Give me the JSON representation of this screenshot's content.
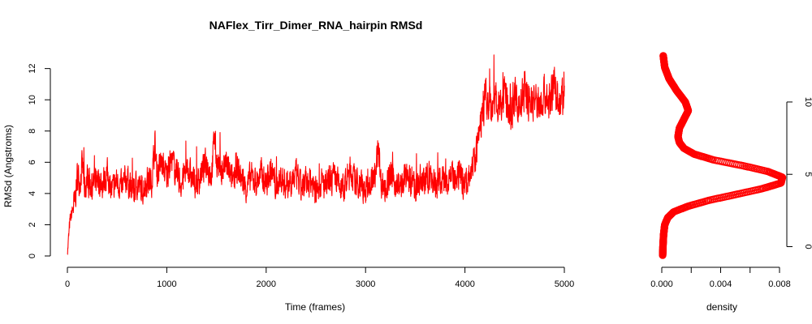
{
  "chart_data": [
    {
      "type": "line",
      "title": "NAFlex_Tirr_Dimer_RNA_hairpin RMSd",
      "xlabel": "Time (frames)",
      "ylabel": "RMSd (Angstroms)",
      "xlim": [
        0,
        5000
      ],
      "ylim": [
        0,
        12.5
      ],
      "xticks": [
        0,
        1000,
        2000,
        3000,
        4000,
        5000
      ],
      "yticks": [
        0,
        2,
        4,
        6,
        8,
        10,
        12
      ],
      "color": "#ff0000",
      "grid": false,
      "series": [
        {
          "x": [
            0,
            25,
            50,
            75,
            100,
            125,
            150,
            175,
            200,
            250,
            300,
            350,
            400,
            450,
            500,
            550,
            600,
            650,
            700,
            750,
            800,
            850,
            880,
            900,
            950,
            1000,
            1050,
            1100,
            1150,
            1200,
            1250,
            1300,
            1350,
            1400,
            1450,
            1480,
            1500,
            1550,
            1600,
            1650,
            1700,
            1750,
            1800,
            1850,
            1900,
            1950,
            2000,
            2050,
            2100,
            2150,
            2200,
            2250,
            2300,
            2350,
            2400,
            2450,
            2500,
            2550,
            2600,
            2650,
            2700,
            2750,
            2800,
            2850,
            2900,
            2950,
            3000,
            3050,
            3100,
            3130,
            3150,
            3200,
            3250,
            3300,
            3350,
            3400,
            3450,
            3500,
            3550,
            3600,
            3650,
            3700,
            3750,
            3800,
            3850,
            3900,
            3950,
            4000,
            4050,
            4100,
            4150,
            4175,
            4200,
            4250,
            4300,
            4350,
            4400,
            4450,
            4500,
            4550,
            4600,
            4650,
            4700,
            4750,
            4800,
            4850,
            4900,
            4950,
            5000
          ],
          "y": [
            0.1,
            2.2,
            2.9,
            3.4,
            5.2,
            4.8,
            5.8,
            4.3,
            5.0,
            4.4,
            5.1,
            4.6,
            5.3,
            4.2,
            4.8,
            4.3,
            5.1,
            4.0,
            4.6,
            4.2,
            4.8,
            4.9,
            7.2,
            5.4,
            5.9,
            5.1,
            6.2,
            5.2,
            4.6,
            5.8,
            5.0,
            4.5,
            5.4,
            6.0,
            5.1,
            7.8,
            6.1,
            5.4,
            5.9,
            4.8,
            5.7,
            5.0,
            4.4,
            5.1,
            4.7,
            5.3,
            4.6,
            5.5,
            4.4,
            5.0,
            4.5,
            4.9,
            5.2,
            4.3,
            4.6,
            4.9,
            4.1,
            4.7,
            4.4,
            4.8,
            5.0,
            4.2,
            4.6,
            5.5,
            4.5,
            4.8,
            4.1,
            4.7,
            5.0,
            7.5,
            4.9,
            4.3,
            5.1,
            4.6,
            4.4,
            5.0,
            4.8,
            4.3,
            4.9,
            4.6,
            5.2,
            4.4,
            5.0,
            4.7,
            5.4,
            4.6,
            5.1,
            4.6,
            5.6,
            6.0,
            8.0,
            9.2,
            10.1,
            9.4,
            10.3,
            9.6,
            10.0,
            9.2,
            10.1,
            9.5,
            10.6,
            9.8,
            10.0,
            9.6,
            10.4,
            9.8,
            10.9,
            9.9,
            10.2
          ]
        }
      ]
    },
    {
      "type": "line",
      "title": "",
      "xlabel": "density",
      "ylabel": "",
      "xlim": [
        0,
        0.008
      ],
      "ylim": [
        -0.7,
        13.3
      ],
      "xticks": [
        "0.000",
        "0.004",
        "0.008"
      ],
      "yticks": [
        0,
        5,
        10
      ],
      "color": "#ff0000",
      "marker": "circle",
      "grid": false,
      "series": [
        {
          "density": [
            6e-05,
            8e-05,
            0.00012,
            0.0002,
            0.0004,
            0.0008,
            0.0018,
            0.0032,
            0.005,
            0.0068,
            0.0081,
            0.0082,
            0.0072,
            0.0055,
            0.0035,
            0.0022,
            0.0015,
            0.0012,
            0.0011,
            0.0012,
            0.0015,
            0.0018,
            0.0016,
            0.001,
            0.0005,
            0.0002,
            0.0001
          ],
          "y": [
            -0.6,
            0.0,
            0.8,
            1.5,
            2.0,
            2.4,
            2.8,
            3.2,
            3.6,
            4.0,
            4.4,
            4.8,
            5.2,
            5.6,
            6.0,
            6.4,
            6.8,
            7.2,
            7.6,
            8.2,
            8.8,
            9.4,
            10.0,
            10.8,
            11.6,
            12.4,
            13.2
          ]
        }
      ]
    }
  ]
}
